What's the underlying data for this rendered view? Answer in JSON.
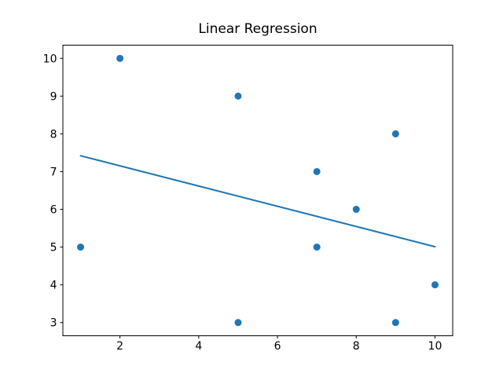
{
  "figure": {
    "background": "#ffffff"
  },
  "chart_data": {
    "type": "scatter",
    "title": "Linear Regression",
    "xlabel": "",
    "ylabel": "",
    "points": [
      {
        "x": 2,
        "y": 10
      },
      {
        "x": 5,
        "y": 9
      },
      {
        "x": 9,
        "y": 8
      },
      {
        "x": 7,
        "y": 7
      },
      {
        "x": 8,
        "y": 6
      },
      {
        "x": 1,
        "y": 5
      },
      {
        "x": 7,
        "y": 5
      },
      {
        "x": 10,
        "y": 4
      },
      {
        "x": 5,
        "y": 3
      },
      {
        "x": 9,
        "y": 3
      }
    ],
    "regression_line": {
      "x1": 1,
      "y1": 7.42,
      "x2": 10,
      "y2": 5.01,
      "slope": -0.268,
      "intercept": 7.69
    },
    "x_ticks": [
      2,
      4,
      6,
      8,
      10
    ],
    "y_ticks": [
      3,
      4,
      5,
      6,
      7,
      8,
      9,
      10
    ],
    "xlim": [
      0.55,
      10.45
    ],
    "ylim": [
      2.65,
      10.35
    ],
    "grid": false,
    "legend": null,
    "marker_color": "#1f77b4",
    "line_color": "#1f77b4",
    "axis_color": "#000000"
  }
}
